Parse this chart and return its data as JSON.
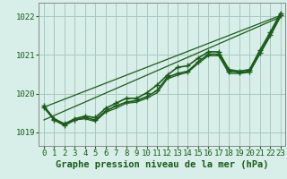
{
  "background_color": "#d8eee8",
  "plot_bg_color": "#d8eee8",
  "grid_color": "#a8c8c0",
  "line_color": "#1a5c1a",
  "marker_color": "#1a5c1a",
  "xlabel": "Graphe pression niveau de la mer (hPa)",
  "ylim": [
    1018.65,
    1022.35
  ],
  "xlim": [
    -0.5,
    23.5
  ],
  "yticks": [
    1019,
    1020,
    1021,
    1022
  ],
  "xticks": [
    0,
    1,
    2,
    3,
    4,
    5,
    6,
    7,
    8,
    9,
    10,
    11,
    12,
    13,
    14,
    15,
    16,
    17,
    18,
    19,
    20,
    21,
    22,
    23
  ],
  "series": [
    {
      "x": [
        0,
        1,
        2,
        3,
        4,
        5,
        6,
        7,
        8,
        9,
        10,
        11,
        12,
        13,
        14,
        15,
        16,
        17,
        18,
        19,
        20,
        21,
        22,
        23
      ],
      "y": [
        1019.65,
        1019.32,
        1019.18,
        1019.32,
        1019.38,
        1019.32,
        1019.55,
        1019.68,
        1019.78,
        1019.82,
        1019.92,
        1020.08,
        1020.42,
        1020.52,
        1020.58,
        1020.82,
        1021.02,
        1021.02,
        1020.58,
        1020.55,
        1020.58,
        1021.05,
        1021.52,
        1022.02
      ],
      "has_markers": true,
      "linewidth": 1.2,
      "markersize": 4
    },
    {
      "x": [
        0,
        1,
        2,
        3,
        4,
        5,
        6,
        7,
        8,
        9,
        10,
        11,
        12,
        13,
        14,
        15,
        16,
        17,
        18,
        19,
        20,
        21,
        22,
        23
      ],
      "y": [
        1019.65,
        1019.32,
        1019.18,
        1019.32,
        1019.35,
        1019.28,
        1019.52,
        1019.62,
        1019.75,
        1019.78,
        1019.88,
        1020.02,
        1020.38,
        1020.48,
        1020.55,
        1020.78,
        1020.98,
        1020.98,
        1020.52,
        1020.52,
        1020.55,
        1021.02,
        1021.48,
        1021.98
      ],
      "has_markers": false,
      "linewidth": 0.9,
      "markersize": 0
    },
    {
      "x": [
        0,
        23
      ],
      "y": [
        1019.65,
        1022.02
      ],
      "has_markers": false,
      "linewidth": 0.9,
      "markersize": 0
    },
    {
      "x": [
        0,
        23
      ],
      "y": [
        1019.32,
        1021.98
      ],
      "has_markers": false,
      "linewidth": 0.9,
      "markersize": 0
    },
    {
      "x": [
        0,
        1,
        2,
        3,
        4,
        5,
        6,
        7,
        8,
        9,
        10,
        11,
        12,
        13,
        14,
        15,
        16,
        17,
        18,
        19,
        20,
        21,
        22,
        23
      ],
      "y": [
        1019.68,
        1019.35,
        1019.22,
        1019.35,
        1019.42,
        1019.38,
        1019.62,
        1019.75,
        1019.88,
        1019.88,
        1020.02,
        1020.22,
        1020.48,
        1020.68,
        1020.72,
        1020.92,
        1021.08,
        1021.08,
        1020.62,
        1020.58,
        1020.62,
        1021.12,
        1021.58,
        1022.08
      ],
      "has_markers": true,
      "linewidth": 1.2,
      "markersize": 4
    }
  ],
  "tick_fontsize": 6.5,
  "label_fontsize": 7.5
}
